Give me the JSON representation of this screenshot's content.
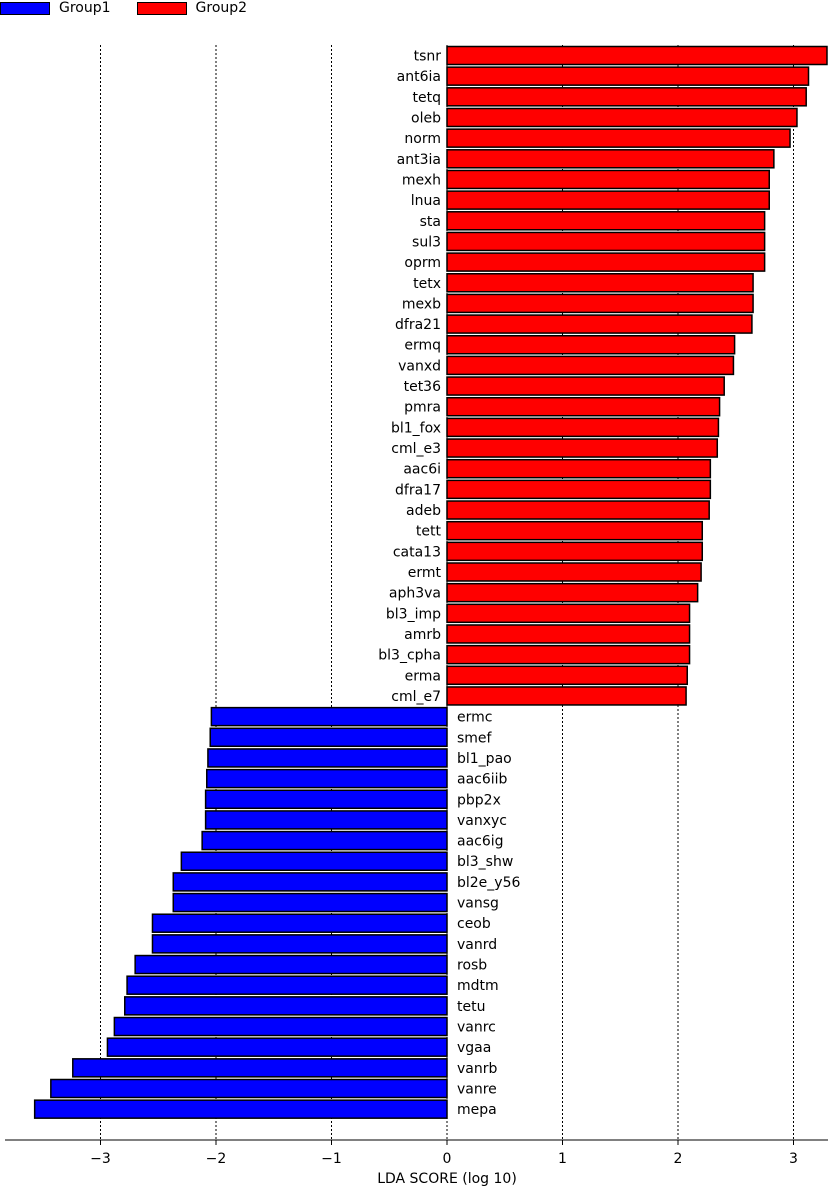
{
  "chart_data": {
    "type": "bar",
    "orientation": "horizontal",
    "xlabel": "LDA SCORE (log 10)",
    "xlim": [
      -3.62,
      3.3
    ],
    "xticks": [
      -3,
      -2,
      -1,
      0,
      1,
      2,
      3
    ],
    "xtick_labels": [
      "−3",
      "−2",
      "−1",
      "0",
      "1",
      "2",
      "3"
    ],
    "grid": "vertical dotted at ticks",
    "legend_position": "top-left",
    "series": [
      {
        "name": "Group1",
        "color": "#0000ff",
        "items": [
          {
            "label": "ermc",
            "value": -2.04
          },
          {
            "label": "smef",
            "value": -2.05
          },
          {
            "label": "bl1_pao",
            "value": -2.07
          },
          {
            "label": "aac6iib",
            "value": -2.08
          },
          {
            "label": "pbp2x",
            "value": -2.09
          },
          {
            "label": "vanxyc",
            "value": -2.09
          },
          {
            "label": "aac6ig",
            "value": -2.12
          },
          {
            "label": "bl3_shw",
            "value": -2.3
          },
          {
            "label": "bl2e_y56",
            "value": -2.37
          },
          {
            "label": "vansg",
            "value": -2.37
          },
          {
            "label": "ceob",
            "value": -2.55
          },
          {
            "label": "vanrd",
            "value": -2.55
          },
          {
            "label": "rosb",
            "value": -2.7
          },
          {
            "label": "mdtm",
            "value": -2.77
          },
          {
            "label": "tetu",
            "value": -2.79
          },
          {
            "label": "vanrc",
            "value": -2.88
          },
          {
            "label": "vgaa",
            "value": -2.94
          },
          {
            "label": "vanrb",
            "value": -3.24
          },
          {
            "label": "vanre",
            "value": -3.43
          },
          {
            "label": "mepa",
            "value": -3.57
          }
        ]
      },
      {
        "name": "Group2",
        "color": "#ff0000",
        "items": [
          {
            "label": "tsnr",
            "value": 3.29
          },
          {
            "label": "ant6ia",
            "value": 3.13
          },
          {
            "label": "tetq",
            "value": 3.11
          },
          {
            "label": "oleb",
            "value": 3.03
          },
          {
            "label": "norm",
            "value": 2.97
          },
          {
            "label": "ant3ia",
            "value": 2.83
          },
          {
            "label": "mexh",
            "value": 2.79
          },
          {
            "label": "lnua",
            "value": 2.79
          },
          {
            "label": "sta",
            "value": 2.75
          },
          {
            "label": "sul3",
            "value": 2.75
          },
          {
            "label": "oprm",
            "value": 2.75
          },
          {
            "label": "tetx",
            "value": 2.65
          },
          {
            "label": "mexb",
            "value": 2.65
          },
          {
            "label": "dfra21",
            "value": 2.64
          },
          {
            "label": "ermq",
            "value": 2.49
          },
          {
            "label": "vanxd",
            "value": 2.48
          },
          {
            "label": "tet36",
            "value": 2.4
          },
          {
            "label": "pmra",
            "value": 2.36
          },
          {
            "label": "bl1_fox",
            "value": 2.35
          },
          {
            "label": "cml_e3",
            "value": 2.34
          },
          {
            "label": "aac6i",
            "value": 2.28
          },
          {
            "label": "dfra17",
            "value": 2.28
          },
          {
            "label": "adeb",
            "value": 2.27
          },
          {
            "label": "tett",
            "value": 2.21
          },
          {
            "label": "cata13",
            "value": 2.21
          },
          {
            "label": "ermt",
            "value": 2.2
          },
          {
            "label": "aph3va",
            "value": 2.17
          },
          {
            "label": "bl3_imp",
            "value": 2.1
          },
          {
            "label": "amrb",
            "value": 2.1
          },
          {
            "label": "bl3_cpha",
            "value": 2.1
          },
          {
            "label": "erma",
            "value": 2.08
          },
          {
            "label": "cml_e7",
            "value": 2.07
          }
        ]
      }
    ]
  }
}
